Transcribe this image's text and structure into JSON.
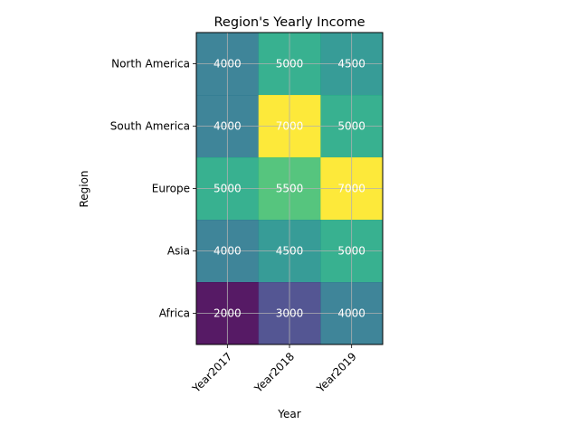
{
  "chart_data": {
    "type": "heatmap",
    "title": "Region's Yearly Income",
    "xlabel": "Year",
    "ylabel": "Region",
    "x_categories": [
      "Year2017",
      "Year2018",
      "Year2019"
    ],
    "y_categories": [
      "North America",
      "South America",
      "Europe",
      "Asia",
      "Africa"
    ],
    "values": [
      [
        4000,
        5000,
        4500
      ],
      [
        4000,
        7000,
        5000
      ],
      [
        5000,
        5500,
        7000
      ],
      [
        4000,
        4500,
        5000
      ],
      [
        2000,
        3000,
        4000
      ]
    ],
    "colormap": "viridis",
    "color_range": [
      2000,
      7000
    ],
    "grid": true,
    "x_tick_rotation": 45,
    "cell_label_color": "#ffffff",
    "grid_color": "#b0b0b0"
  }
}
